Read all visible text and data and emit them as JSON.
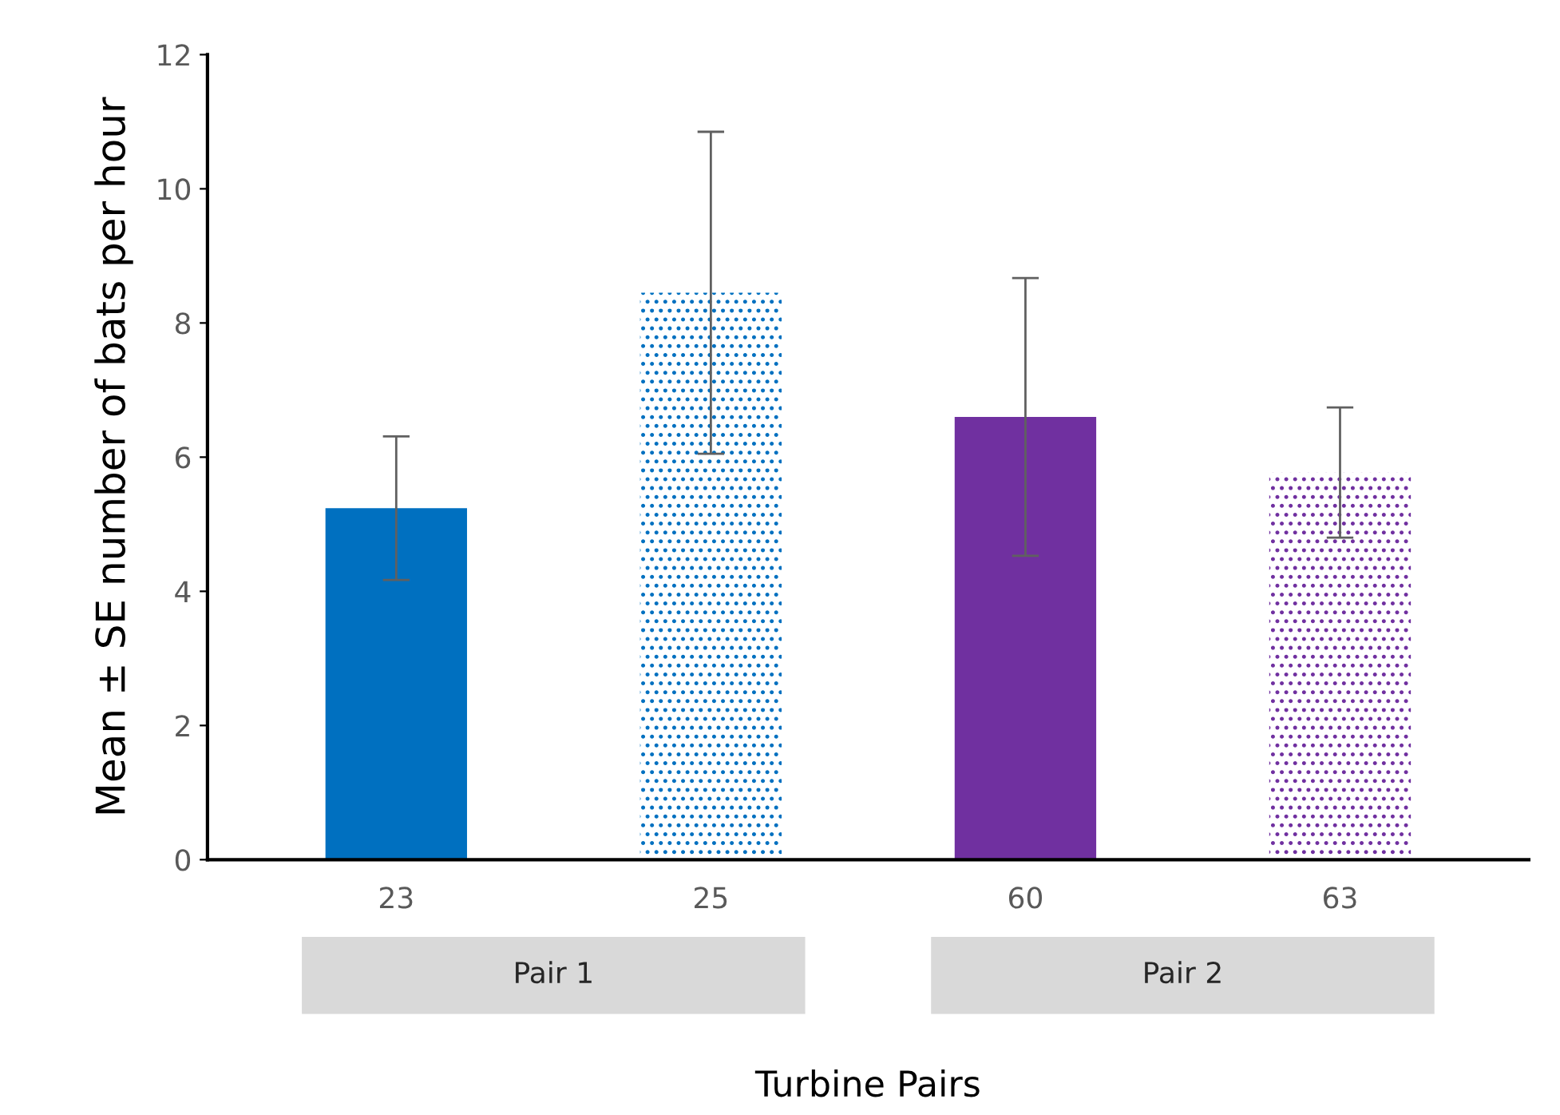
{
  "chart_data": {
    "type": "bar",
    "xlabel": "Turbine Pairs",
    "ylabel": "Mean ± SE number of bats per hour",
    "categories": [
      "23",
      "25",
      "60",
      "63"
    ],
    "values": [
      5.24,
      8.45,
      6.6,
      5.77
    ],
    "errors": [
      1.07,
      2.4,
      2.07,
      0.97
    ],
    "colors": [
      "#0070c0",
      "#0070c0",
      "#7030a0",
      "#7030a0"
    ],
    "ylim": [
      0,
      12
    ],
    "yticks": [
      0,
      2,
      4,
      6,
      8,
      10,
      12
    ],
    "grid": false,
    "legend": false,
    "annotations": [
      "Pair 1",
      "Pair 2"
    ]
  }
}
